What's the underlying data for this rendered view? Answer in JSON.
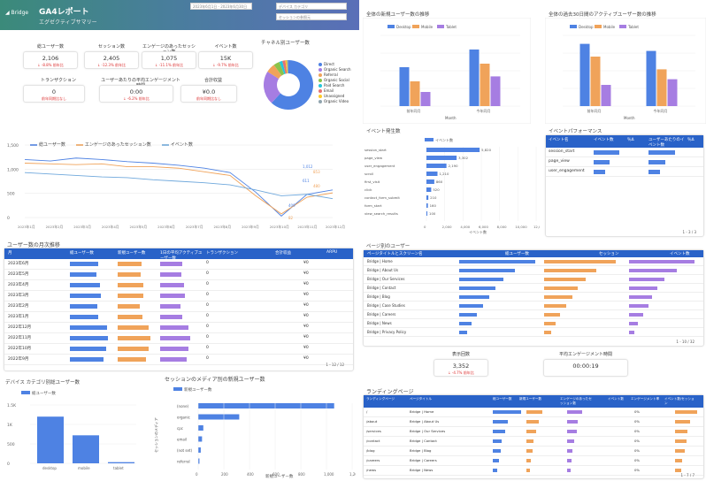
{
  "header": {
    "logo_text": "Bridge",
    "title": "GA4レポート",
    "subtitle": "エグゼクティブサマリー",
    "date_range": "2023年6月1日 - 2023年6月30日",
    "filter1": "デバイス カテゴリ",
    "filter2": "セッションの参照元"
  },
  "colors": {
    "blue": "#4e82e3",
    "orange": "#f0a35a",
    "purple": "#a67de2",
    "header_bg": "#3b8a7a",
    "table_header": "#2962c8"
  },
  "kpis": [
    {
      "label": "総ユーザー数",
      "value": "2,106",
      "sub": "↓ -8.8% 前年比"
    },
    {
      "label": "セッション数",
      "value": "2,405",
      "sub": "↓ -12.3% 前年比"
    },
    {
      "label": "エンゲージのあったセッション数",
      "value": "1,075",
      "sub": "↓ -11.1% 前年比"
    },
    {
      "label": "イベント数",
      "value": "15K",
      "sub": "↓ -9.7% 前年比"
    },
    {
      "label": "トランザクション",
      "value": "0",
      "sub": "前年同期比なし"
    },
    {
      "label": "ユーザーあたりの平均エンゲージメント時間",
      "value": "0:00",
      "sub": "↓ -6.2% 前年比"
    },
    {
      "label": "合計収益",
      "value": "¥0.0",
      "sub": "前年同期比なし"
    }
  ],
  "pie": {
    "title": "チャネル別ユーザー数",
    "legend": [
      "Direct",
      "Organic Search",
      "Referral",
      "Organic Social",
      "Paid Search",
      "Email",
      "Unassigned",
      "Organic Video"
    ],
    "values": [
      62,
      22,
      6,
      4,
      2,
      2,
      1,
      1
    ],
    "colors": [
      "#4e82e3",
      "#a67de2",
      "#f0a35a",
      "#8bc34a",
      "#26c6da",
      "#e57373",
      "#ffca28",
      "#90a4ae"
    ]
  },
  "line_chart": {
    "legends": [
      "総ユーザー数",
      "エンゲージのあったセッション数",
      "イベント数"
    ],
    "ylabels": [
      "1,500",
      "1,000",
      "500",
      "0"
    ],
    "annotations": [
      "1,012",
      "853",
      "611",
      "480",
      "409",
      "82"
    ],
    "xlabels": [
      "2023年1月",
      "2023年2月",
      "2023年3月",
      "2023年4月",
      "2023年5月",
      "2023年6月",
      "2023年7月",
      "2023年8月",
      "2023年9月",
      "2023年10月",
      "2023年11月",
      "2023年12月"
    ]
  },
  "monthly_table": {
    "title": "ユーザー数の月次推移",
    "headers": [
      "月",
      "総ユーザー数",
      "新規ユーザー数",
      "1日の平均アクティブユーザー数",
      "トランザクション",
      "合計収益",
      "ARPU"
    ],
    "rows": [
      {
        "month": "2023年6月",
        "u": 0.62,
        "n": 0.58,
        "a": 0.55
      },
      {
        "month": "2023年5月",
        "u": 0.58,
        "n": 0.57,
        "a": 0.52
      },
      {
        "month": "2023年4月",
        "u": 0.66,
        "n": 0.62,
        "a": 0.58
      },
      {
        "month": "2023年3月",
        "u": 0.68,
        "n": 0.64,
        "a": 0.6
      },
      {
        "month": "2023年2月",
        "u": 0.6,
        "n": 0.55,
        "a": 0.5
      },
      {
        "month": "2023年1月",
        "u": 0.62,
        "n": 0.6,
        "a": 0.54
      },
      {
        "month": "2022年12月",
        "u": 0.8,
        "n": 0.76,
        "a": 0.7
      },
      {
        "month": "2022年11月",
        "u": 0.82,
        "n": 0.8,
        "a": 0.74
      },
      {
        "month": "2022年10月",
        "u": 0.78,
        "n": 0.75,
        "a": 0.7
      },
      {
        "month": "2022年9月",
        "u": 0.74,
        "n": 0.7,
        "a": 0.66
      }
    ],
    "cell_zero": "0",
    "cell_yen": "¥0",
    "pager": "1 - 12 / 12"
  },
  "device_chart": {
    "title": "デバイス カテゴリ別総ユーザー数",
    "legend": "総ユーザー数",
    "ylabels": [
      "1.5K",
      "1K",
      "500",
      "0"
    ],
    "categories": [
      "desktop",
      "mobile",
      "tablet"
    ],
    "values": [
      1200,
      720,
      30
    ]
  },
  "medium_chart": {
    "title": "セッションのメディア別の新規ユーザー数",
    "legend": "新規ユーザー数",
    "categories": [
      "(none)",
      "organic",
      "cpc",
      "email",
      "(not set)",
      "referral"
    ],
    "values": [
      1060,
      320,
      40,
      30,
      20,
      10
    ],
    "xlabels": [
      "0",
      "200",
      "400",
      "600",
      "800",
      "1,000",
      "1,200"
    ],
    "xtitle": "新規ユーザー数",
    "ytitle": "セッションのメディア"
  },
  "yoy1": {
    "title": "全体の新規ユーザー数の推移",
    "legends": [
      "Desktop",
      "Mobile",
      "Tablet"
    ],
    "categories": [
      "前年同月",
      "今年同月"
    ],
    "values": [
      [
        0.55,
        0.35,
        0.2
      ],
      [
        0.8,
        0.6,
        0.42
      ]
    ],
    "xtitle": "Month"
  },
  "yoy2": {
    "title": "全体の過去30日間のアクティブユーザー数の推移",
    "legends": [
      "Desktop",
      "Mobile",
      "Tablet"
    ],
    "categories": [
      "前年同月",
      "今年同月"
    ],
    "values": [
      [
        0.88,
        0.7,
        0.3
      ],
      [
        0.78,
        0.52,
        0.38
      ]
    ],
    "xtitle": "Month"
  },
  "event_chart": {
    "title": "イベント発生数",
    "legend": "イベント数",
    "categories": [
      "session_start",
      "page_view",
      "user_engagement",
      "scroll",
      "first_visit",
      "click",
      "contact_form_submit",
      "form_start",
      "view_search_results"
    ],
    "values": [
      5820,
      3302,
      2190,
      1210,
      860,
      520,
      210,
      160,
      100
    ],
    "labels": [
      "5,820",
      "3,302",
      "2,190",
      "1,210",
      "860",
      "520",
      "210",
      "160",
      "100"
    ],
    "xlabels": [
      "0",
      "2,000",
      "4,000",
      "6,000",
      "8,000",
      "10,000",
      "12,000"
    ],
    "xtitle": "イベント数"
  },
  "event_perf": {
    "title": "イベントパフォーマンス",
    "headers": [
      "イベント名",
      "イベント数",
      "％Δ",
      "ユーザーあたりのイベント数",
      "％Δ"
    ],
    "rows": [
      {
        "name": "session_start",
        "v": 0.8
      },
      {
        "name": "page_view",
        "v": 0.5
      },
      {
        "name": "user_engagement",
        "v": 0.35
      }
    ],
    "pager": "1 - 3 / 3"
  },
  "landing_table": {
    "title": "ページ別のユーザー",
    "headers": [
      "ページタイトルとスクリーン名",
      "総ユーザー数",
      "セッション",
      "イベント数"
    ],
    "rows": [
      {
        "title": "Bridge | Home",
        "u": 0.95,
        "s": 0.9,
        "e": 0.92
      },
      {
        "title": "Bridge | About Us",
        "u": 0.7,
        "s": 0.65,
        "e": 0.68
      },
      {
        "title": "Bridge | Our Services",
        "u": 0.55,
        "s": 0.52,
        "e": 0.5
      },
      {
        "title": "Bridge | Contact",
        "u": 0.45,
        "s": 0.42,
        "e": 0.4
      },
      {
        "title": "Bridge | Blog",
        "u": 0.38,
        "s": 0.35,
        "e": 0.33
      },
      {
        "title": "Bridge | Case Studies",
        "u": 0.3,
        "s": 0.28,
        "e": 0.27
      },
      {
        "title": "Bridge | Careers",
        "u": 0.22,
        "s": 0.2,
        "e": 0.2
      },
      {
        "title": "Bridge | News",
        "u": 0.15,
        "s": 0.14,
        "e": 0.13
      },
      {
        "title": "Bridge | Privacy Policy",
        "u": 0.1,
        "s": 0.09,
        "e": 0.08
      }
    ],
    "pager": "1 - 10 / 32"
  },
  "mid_kpis": [
    {
      "label": "表示回数",
      "value": "3,352",
      "sub": "↓ -4.7% 前年比"
    },
    {
      "label": "平均エンゲージメント時間",
      "value": "00:00:19",
      "sub": ""
    }
  ],
  "landing_pages": {
    "title": "ランディングページ",
    "headers": [
      "ランディングページ",
      "ページタイトル",
      "総ユーザー数",
      "新規ユーザー数",
      "エンゲージのあったセッション数",
      "イベント数",
      "エンゲージメント率",
      "イベント数/セッション"
    ],
    "rows": [
      {
        "page": "/",
        "title": "Bridge | Home",
        "a": 0.95,
        "b": 0.6,
        "c": 0.55,
        "d": 0.9
      },
      {
        "page": "/about",
        "title": "Bridge | About Us",
        "a": 0.5,
        "b": 0.45,
        "c": 0.4,
        "d": 0.6
      },
      {
        "page": "/services",
        "title": "Bridge | Our Services",
        "a": 0.42,
        "b": 0.35,
        "c": 0.38,
        "d": 0.5
      },
      {
        "page": "/contact",
        "title": "Bridge | Contact",
        "a": 0.3,
        "b": 0.28,
        "c": 0.26,
        "d": 0.45
      },
      {
        "page": "/blog",
        "title": "Bridge | Blog",
        "a": 0.25,
        "b": 0.22,
        "c": 0.2,
        "d": 0.38
      },
      {
        "page": "/careers",
        "title": "Bridge | Careers",
        "a": 0.2,
        "b": 0.18,
        "c": 0.17,
        "d": 0.3
      },
      {
        "page": "/news",
        "title": "Bridge | News",
        "a": 0.15,
        "b": 0.13,
        "c": 0.12,
        "d": 0.25
      }
    ],
    "pct": "0%",
    "pager": "1 - 7 / 7"
  }
}
